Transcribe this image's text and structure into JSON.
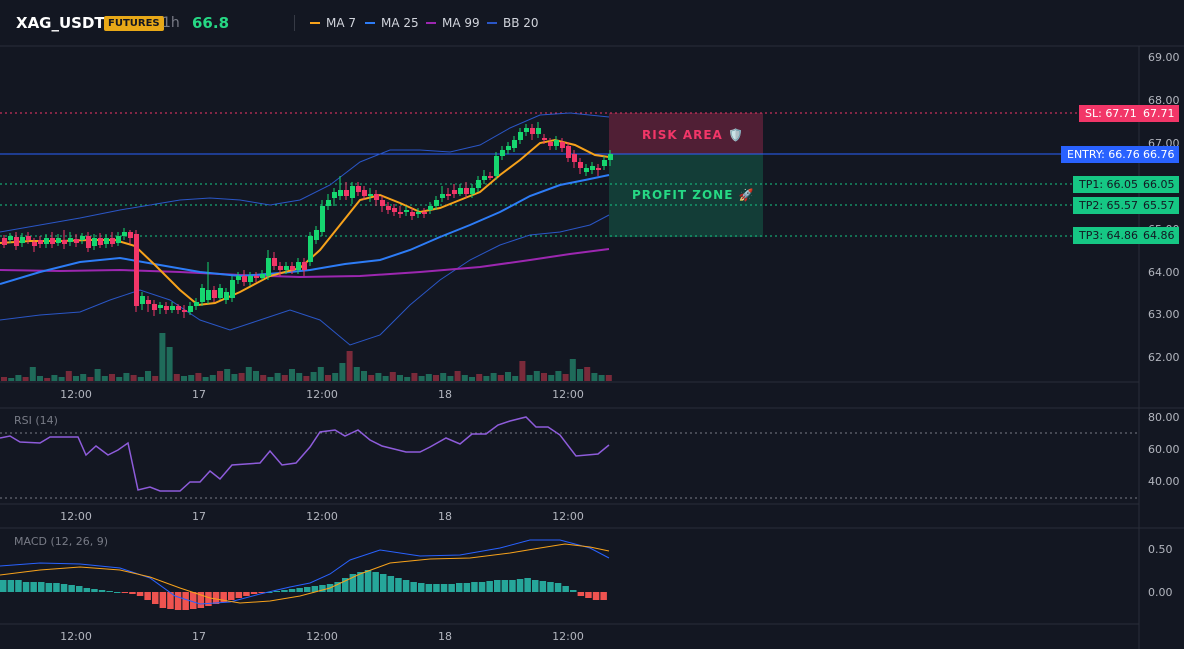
{
  "header": {
    "symbol": "XAG_USDT",
    "badge": "FUTURES",
    "timeframe": "1h",
    "price": "66.8"
  },
  "legend": [
    {
      "label": "MA 7",
      "color": "#f7a21b"
    },
    {
      "label": "MA 25",
      "color": "#2d7cf6"
    },
    {
      "label": "MA 99",
      "color": "#9c27b0"
    },
    {
      "label": "BB 20",
      "color": "#2a56c6"
    }
  ],
  "price_axis": [
    "69.00",
    "68.00",
    "67.00",
    "66.00",
    "65.00",
    "64.00",
    "63.00",
    "62.00"
  ],
  "time_axis": [
    "12:00",
    "17",
    "12:00",
    "18",
    "12:00"
  ],
  "levels": {
    "sl": {
      "label": "SL: 67.71",
      "value": "67.71",
      "color": "#f23668"
    },
    "entry": {
      "label": "ENTRY: 66.76",
      "value": "66.76",
      "color": "#2962ff"
    },
    "tp1": {
      "label": "TP1: 66.05",
      "value": "66.05",
      "color": "#16c784"
    },
    "tp2": {
      "label": "TP2: 65.57",
      "value": "65.57",
      "color": "#16c784"
    },
    "tp3": {
      "label": "TP3: 64.86",
      "value": "64.86",
      "color": "#16c784"
    }
  },
  "zones": {
    "risk": "RISK AREA 🛡️",
    "profit": "PROFIT ZONE 🚀"
  },
  "rsi": {
    "title": "RSI (14)",
    "axis": [
      "80.00",
      "60.00",
      "40.00"
    ]
  },
  "macd": {
    "title": "MACD (12, 26, 9)",
    "axis": [
      "0.50",
      "0.00"
    ]
  }
}
